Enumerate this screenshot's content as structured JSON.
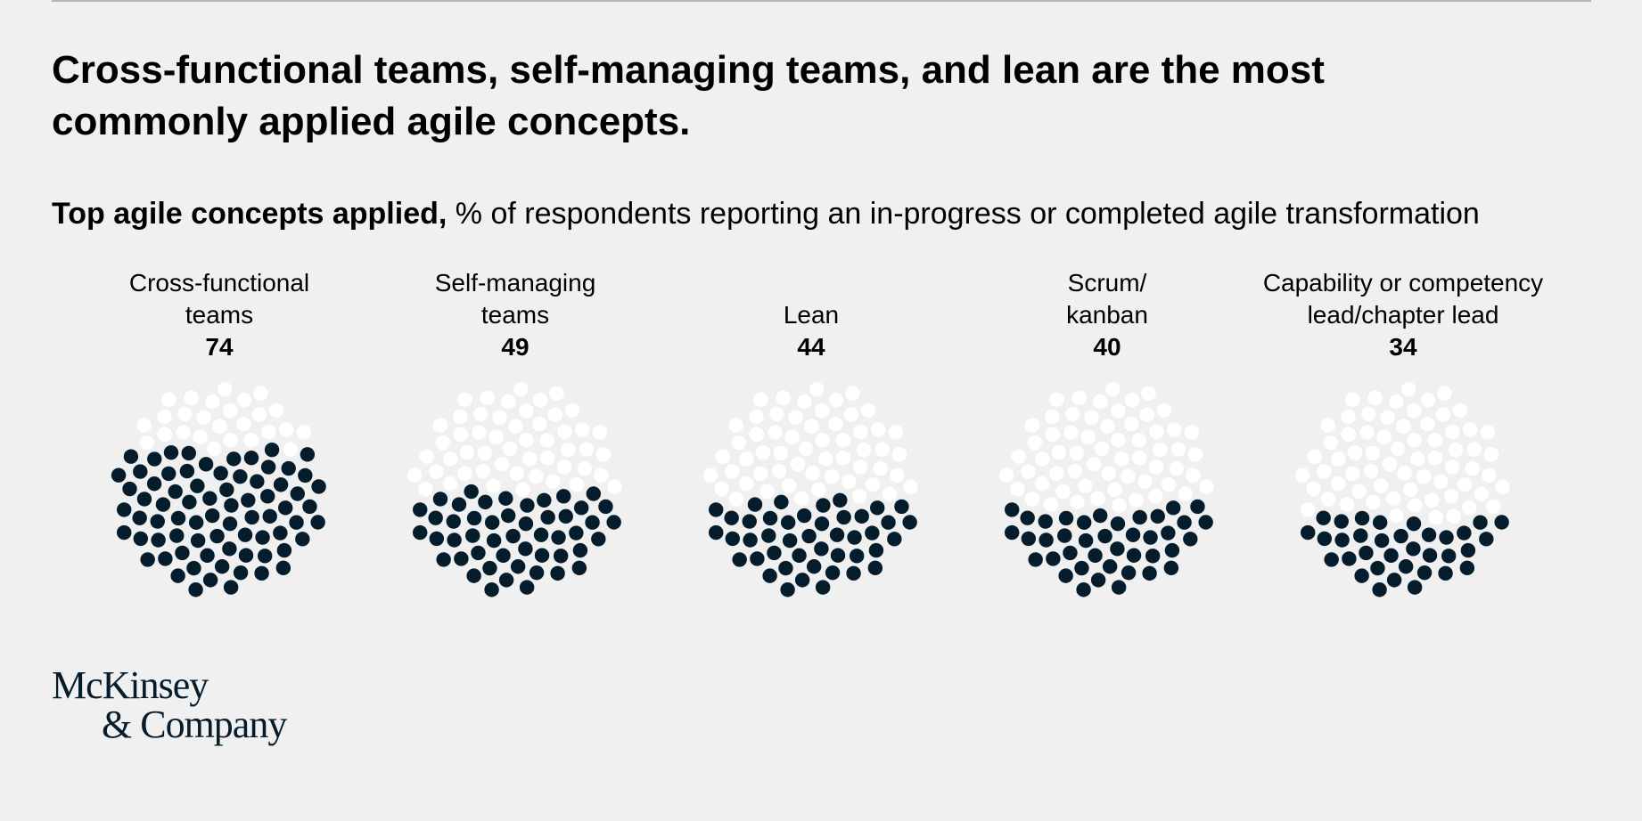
{
  "headline": "Cross-functional teams, self-managing teams, and lean are the most commonly applied agile concepts.",
  "subtitle_bold": "Top agile concepts applied,",
  "subtitle_rest": " % of respondents reporting an in-progress or completed agile transformation",
  "logo": {
    "line1": "McKinsey",
    "line2": "& Company"
  },
  "colors": {
    "filled_dot": "#051c2c",
    "empty_dot": "#ffffff",
    "background": "#f0f0f0"
  },
  "chart_data": {
    "type": "dot-fill",
    "title": "Top agile concepts applied",
    "unit": "% of respondents reporting an in-progress or completed agile transformation",
    "categories": [
      "Cross-functional teams",
      "Self-managing teams",
      "Lean",
      "Scrum/ kanban",
      "Capability or competency lead/chapter lead"
    ],
    "display_labels": [
      [
        "Cross-functional",
        "teams"
      ],
      [
        "Self-managing",
        "teams"
      ],
      [
        "Lean"
      ],
      [
        "Scrum/",
        "kanban"
      ],
      [
        "Capability or competency",
        "lead/chapter lead"
      ]
    ],
    "values": [
      74,
      49,
      44,
      40,
      34
    ],
    "scale_max": 100
  }
}
